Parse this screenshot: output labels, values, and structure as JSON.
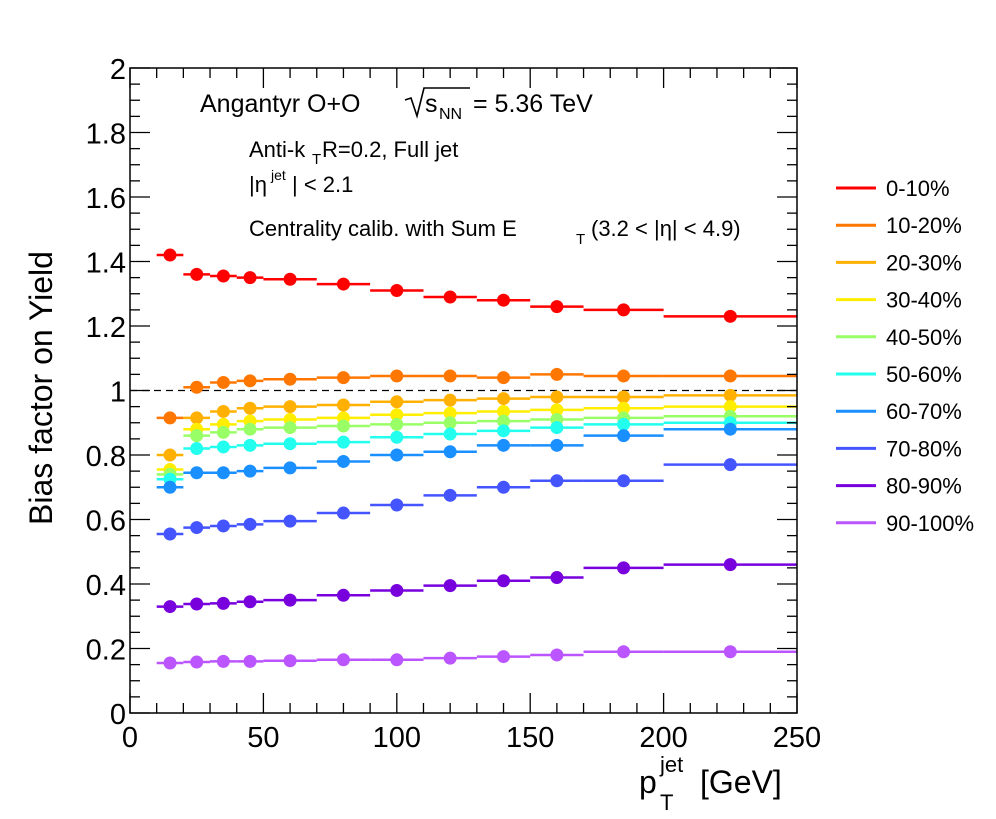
{
  "chart_data": {
    "type": "scatter",
    "ylabel": "Bias factor on Yield",
    "xlabel": {
      "base": "p",
      "sub": "T",
      "sup": "jet",
      "unit": "[GeV]"
    },
    "xlim": [
      0,
      250
    ],
    "ylim": [
      0,
      2
    ],
    "x_ticks": [
      0,
      50,
      100,
      150,
      200,
      250
    ],
    "y_ticks": [
      0,
      0.2,
      0.4,
      0.6,
      0.8,
      1,
      1.2,
      1.4,
      1.6,
      1.8,
      2
    ],
    "x_tick_labels": [
      "0",
      "50",
      "100",
      "150",
      "200",
      "250"
    ],
    "y_tick_labels": [
      "0",
      "0.2",
      "0.4",
      "0.6",
      "0.8",
      "1",
      "1.2",
      "1.4",
      "1.6",
      "1.8",
      "2"
    ],
    "reference_line": 1,
    "bins": [
      [
        10,
        20
      ],
      [
        20,
        30
      ],
      [
        30,
        40
      ],
      [
        40,
        50
      ],
      [
        50,
        70
      ],
      [
        70,
        90
      ],
      [
        90,
        110
      ],
      [
        110,
        130
      ],
      [
        130,
        150
      ],
      [
        150,
        170
      ],
      [
        170,
        200
      ],
      [
        200,
        250
      ]
    ],
    "x": [
      15,
      25,
      35,
      45,
      60,
      80,
      100,
      120,
      140,
      160,
      185,
      225
    ],
    "series": [
      {
        "name": "0-10%",
        "color": "#ff0000",
        "values": [
          1.42,
          1.36,
          1.355,
          1.35,
          1.345,
          1.33,
          1.31,
          1.29,
          1.28,
          1.26,
          1.25,
          1.23
        ]
      },
      {
        "name": "10-20%",
        "color": "#ff7700",
        "values": [
          0.915,
          1.01,
          1.025,
          1.03,
          1.035,
          1.04,
          1.045,
          1.045,
          1.04,
          1.05,
          1.045,
          1.045
        ]
      },
      {
        "name": "20-30%",
        "color": "#ffb000",
        "values": [
          0.8,
          0.915,
          0.935,
          0.945,
          0.95,
          0.955,
          0.965,
          0.97,
          0.975,
          0.98,
          0.98,
          0.985
        ]
      },
      {
        "name": "30-40%",
        "color": "#ffee00",
        "values": [
          0.755,
          0.88,
          0.895,
          0.905,
          0.91,
          0.915,
          0.925,
          0.93,
          0.935,
          0.94,
          0.945,
          0.95
        ]
      },
      {
        "name": "40-50%",
        "color": "#99ff66",
        "values": [
          0.74,
          0.86,
          0.87,
          0.88,
          0.885,
          0.89,
          0.895,
          0.9,
          0.905,
          0.91,
          0.915,
          0.92
        ]
      },
      {
        "name": "50-60%",
        "color": "#22ffee",
        "values": [
          0.725,
          0.82,
          0.825,
          0.83,
          0.835,
          0.84,
          0.855,
          0.865,
          0.875,
          0.885,
          0.895,
          0.9
        ]
      },
      {
        "name": "60-70%",
        "color": "#1a8fff",
        "values": [
          0.7,
          0.745,
          0.745,
          0.75,
          0.76,
          0.78,
          0.8,
          0.81,
          0.83,
          0.83,
          0.86,
          0.88
        ]
      },
      {
        "name": "70-80%",
        "color": "#4455ff",
        "values": [
          0.555,
          0.575,
          0.58,
          0.585,
          0.595,
          0.62,
          0.645,
          0.675,
          0.7,
          0.72,
          0.72,
          0.77
        ]
      },
      {
        "name": "80-90%",
        "color": "#7700dd",
        "values": [
          0.33,
          0.338,
          0.34,
          0.345,
          0.35,
          0.365,
          0.38,
          0.395,
          0.41,
          0.42,
          0.45,
          0.46
        ]
      },
      {
        "name": "90-100%",
        "color": "#bb55ff",
        "values": [
          0.155,
          0.158,
          0.16,
          0.16,
          0.162,
          0.165,
          0.165,
          0.17,
          0.175,
          0.18,
          0.19,
          0.19
        ]
      }
    ],
    "annotations": {
      "line1": "Angantyr O+O",
      "sqrt_sub": "NN",
      "line1_value": "= 5.36 TeV",
      "line2_a": "Anti-k",
      "line2_sub": "T",
      "line2_b": " R=0.2, Full jet",
      "line3_a": "|η",
      "line3_sup": "jet",
      "line3_b": "| < 2.1",
      "line4_a": "Centrality calib. with Sum E",
      "line4_sub": "T",
      "line4_b": " (3.2 < |η| < 4.9)"
    },
    "legend_position": "right"
  }
}
